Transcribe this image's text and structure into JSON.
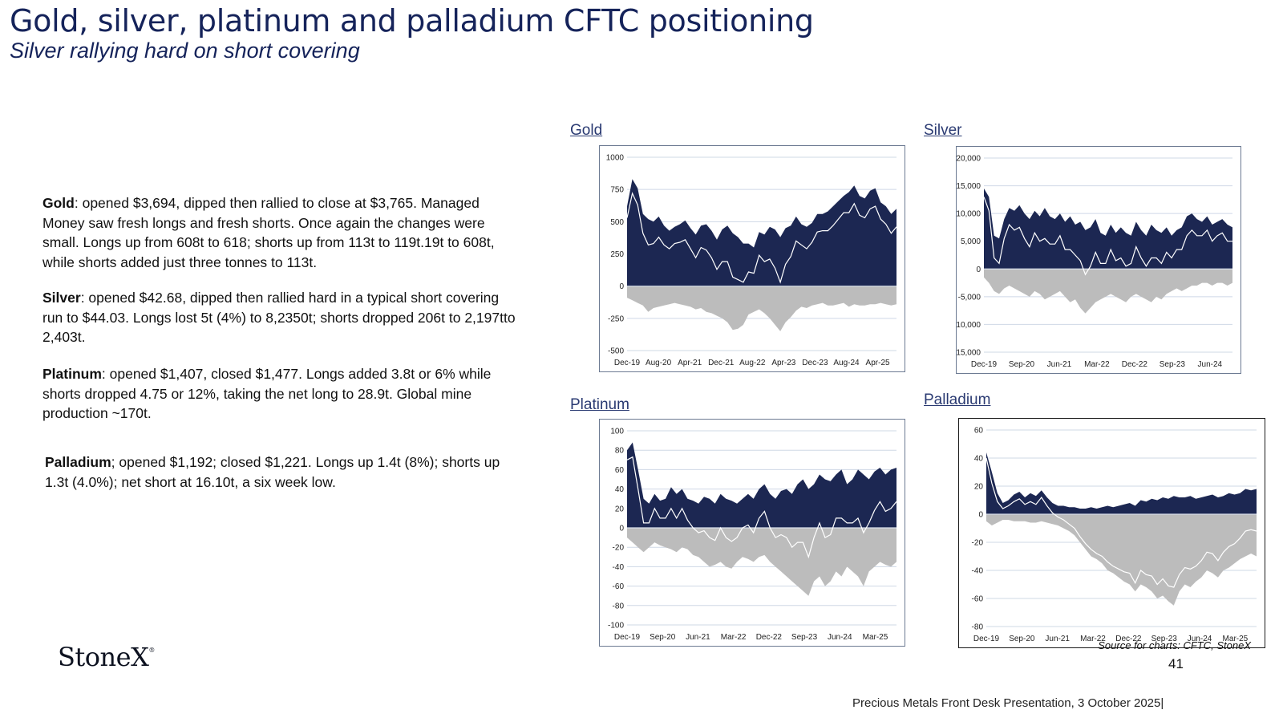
{
  "header": {
    "title": "Gold, silver, platinum and palladium CFTC positioning",
    "subtitle": "Silver rallying hard on short covering"
  },
  "commentary": [
    {
      "metal": "Gold",
      "text": ": opened $3,694, dipped then rallied to close at $3,765. Managed Money saw fresh longs and fresh shorts.  Once again the changes were small.  Longs up from 608t to 618; shorts up from 113t to 119t.19t to 608t, while shorts added just three tonnes to 113t."
    },
    {
      "metal": "Silver",
      "text": ": opened $42.68, dipped then rallied hard  in a typical short covering run to $44.03. Longs lost 5t (4%) to 8,2350t; shorts dropped 206t to 2,197tto 2,403t."
    },
    {
      "metal": "Platinum",
      "text": ": opened $1,407, closed $1,477. Longs added 3.8t or 6% while shorts dropped 4.75 or 12%, taking the net long to 28.9t.  Global mine production ~170t."
    },
    {
      "metal": "Palladium",
      "text": "; opened $1,192; closed $1,221.  Longs up 1.4t (8%); shorts up 1.3t (4.0%); net short at 16.10t, a six week low."
    }
  ],
  "colors": {
    "longs": "#1c2752",
    "shorts": "#bcbcbc",
    "net": "#ffffff",
    "grid": "#cfd8e6",
    "title": "#15235a"
  },
  "chart_data": [
    {
      "type": "area",
      "title": "Gold",
      "x_range": [
        "Dec-19",
        "Aug-25"
      ],
      "xticks": [
        "Dec-19",
        "Aug-20",
        "Apr-21",
        "Dec-21",
        "Aug-22",
        "Apr-23",
        "Dec-23",
        "Aug-24",
        "Apr-25"
      ],
      "yticks": [
        "1000",
        "750",
        "500",
        "250",
        "0",
        "-250",
        "-500"
      ],
      "ylim": [
        -500,
        1000
      ],
      "series": [
        {
          "role": "longs",
          "values": [
            620,
            830,
            760,
            560,
            520,
            500,
            540,
            470,
            430,
            460,
            480,
            510,
            450,
            400,
            470,
            480,
            430,
            360,
            440,
            470,
            410,
            380,
            330,
            330,
            300,
            420,
            400,
            460,
            440,
            380,
            450,
            470,
            540,
            480,
            460,
            490,
            560,
            560,
            580,
            620,
            660,
            700,
            730,
            780,
            700,
            680,
            740,
            760,
            650,
            620,
            560,
            600
          ]
        },
        {
          "role": "shorts",
          "values": [
            -90,
            -110,
            -130,
            -150,
            -200,
            -170,
            -160,
            -150,
            -140,
            -130,
            -140,
            -150,
            -160,
            -180,
            -170,
            -200,
            -210,
            -230,
            -250,
            -280,
            -340,
            -330,
            -300,
            -220,
            -200,
            -180,
            -210,
            -250,
            -300,
            -350,
            -280,
            -240,
            -190,
            -160,
            -170,
            -150,
            -140,
            -130,
            -150,
            -150,
            -140,
            -130,
            -160,
            -140,
            -150,
            -150,
            -140,
            -140,
            -130,
            -140,
            -150,
            -140
          ]
        },
        {
          "role": "net",
          "values": [
            530,
            720,
            630,
            410,
            320,
            330,
            380,
            320,
            290,
            330,
            340,
            360,
            290,
            220,
            300,
            280,
            220,
            130,
            190,
            190,
            70,
            50,
            30,
            110,
            100,
            240,
            190,
            210,
            140,
            30,
            170,
            230,
            350,
            320,
            290,
            340,
            420,
            430,
            430,
            470,
            520,
            570,
            570,
            640,
            550,
            530,
            600,
            620,
            520,
            480,
            410,
            460
          ]
        }
      ]
    },
    {
      "type": "area",
      "title": "Silver",
      "x_range": [
        "Dec-19",
        "Aug-25"
      ],
      "xticks": [
        "Dec-19",
        "Sep-20",
        "Jun-21",
        "Mar-22",
        "Dec-22",
        "Sep-23",
        "Jun-24"
      ],
      "yticks": [
        "20,000",
        "15,000",
        "10,000",
        "5,000",
        "0",
        "-5,000",
        "-10,000",
        "-15,000"
      ],
      "ylim": [
        -15000,
        20000
      ],
      "series": [
        {
          "role": "longs",
          "values": [
            14500,
            13000,
            6000,
            5500,
            9000,
            11000,
            10500,
            11500,
            10000,
            9000,
            10500,
            9500,
            11000,
            9500,
            9000,
            10000,
            8500,
            9500,
            8000,
            8500,
            7000,
            7500,
            9000,
            6500,
            6000,
            8000,
            6500,
            7500,
            6500,
            6000,
            8500,
            7000,
            6000,
            8000,
            7000,
            6500,
            7500,
            6000,
            7000,
            7500,
            9500,
            10000,
            9000,
            8500,
            9500,
            8000,
            8500,
            9000,
            8000,
            7500
          ]
        },
        {
          "role": "shorts",
          "values": [
            -1500,
            -2500,
            -4000,
            -4500,
            -3500,
            -3000,
            -3500,
            -4000,
            -4500,
            -5000,
            -4000,
            -4500,
            -5500,
            -5000,
            -4500,
            -4000,
            -5000,
            -6000,
            -5500,
            -7000,
            -8000,
            -7000,
            -6000,
            -5500,
            -5000,
            -4500,
            -5000,
            -5500,
            -6000,
            -5000,
            -4500,
            -5000,
            -5500,
            -6000,
            -5000,
            -5500,
            -4500,
            -4000,
            -3500,
            -4000,
            -3500,
            -3000,
            -3000,
            -2500,
            -2500,
            -3000,
            -2500,
            -2500,
            -3000,
            -2500
          ]
        },
        {
          "role": "net",
          "values": [
            13000,
            10500,
            2000,
            1000,
            5500,
            8000,
            7000,
            7500,
            5500,
            4000,
            6500,
            5000,
            5500,
            4500,
            4500,
            6000,
            3500,
            3500,
            2500,
            1500,
            -1000,
            500,
            3000,
            1000,
            1000,
            3500,
            1500,
            2000,
            500,
            1000,
            4000,
            2000,
            500,
            2000,
            2000,
            1000,
            3000,
            2000,
            3500,
            3500,
            6000,
            7000,
            6000,
            6000,
            7000,
            5000,
            6000,
            6500,
            5000,
            5000
          ]
        }
      ]
    },
    {
      "type": "area",
      "title": "Platinum",
      "x_range": [
        "Dec-19",
        "Aug-25"
      ],
      "xticks": [
        "Dec-19",
        "Sep-20",
        "Jun-21",
        "Mar-22",
        "Dec-22",
        "Sep-23",
        "Jun-24",
        "Mar-25"
      ],
      "yticks": [
        "100",
        "80",
        "60",
        "40",
        "20",
        "0",
        "-20",
        "-40",
        "-60",
        "-80",
        "-100"
      ],
      "ylim": [
        -100,
        100
      ],
      "series": [
        {
          "role": "longs",
          "values": [
            80,
            88,
            60,
            30,
            25,
            35,
            28,
            30,
            42,
            35,
            40,
            30,
            28,
            25,
            32,
            30,
            25,
            35,
            30,
            28,
            25,
            30,
            35,
            30,
            40,
            45,
            35,
            30,
            38,
            40,
            35,
            45,
            50,
            40,
            45,
            55,
            50,
            48,
            55,
            60,
            45,
            50,
            60,
            55,
            50,
            58,
            62,
            55,
            60,
            62
          ]
        },
        {
          "role": "shorts",
          "values": [
            -10,
            -15,
            -20,
            -25,
            -20,
            -15,
            -18,
            -20,
            -22,
            -25,
            -20,
            -22,
            -28,
            -30,
            -35,
            -40,
            -38,
            -35,
            -40,
            -42,
            -35,
            -30,
            -32,
            -35,
            -30,
            -28,
            -35,
            -40,
            -45,
            -50,
            -55,
            -60,
            -65,
            -70,
            -55,
            -50,
            -60,
            -55,
            -45,
            -50,
            -40,
            -45,
            -50,
            -60,
            -45,
            -40,
            -35,
            -38,
            -40,
            -35
          ]
        },
        {
          "role": "net",
          "values": [
            70,
            73,
            40,
            5,
            5,
            20,
            10,
            10,
            20,
            10,
            20,
            8,
            0,
            -5,
            -3,
            -10,
            -13,
            0,
            -10,
            -14,
            -10,
            0,
            3,
            -5,
            10,
            17,
            0,
            -10,
            -7,
            -10,
            -20,
            -15,
            -15,
            -30,
            -10,
            5,
            -10,
            -7,
            10,
            10,
            5,
            5,
            10,
            -5,
            5,
            18,
            27,
            17,
            20,
            27
          ]
        }
      ]
    },
    {
      "type": "area",
      "title": "Palladium",
      "x_range": [
        "Dec-19",
        "Aug-25"
      ],
      "xticks": [
        "Dec-19",
        "Sep-20",
        "Jun-21",
        "Mar-22",
        "Dec-22",
        "Sep-23",
        "Jun-24",
        "Mar-25"
      ],
      "yticks": [
        "60",
        "40",
        "20",
        "0",
        "-20",
        "-40",
        "-60",
        "-80"
      ],
      "ylim": [
        -80,
        60
      ],
      "series": [
        {
          "role": "longs",
          "values": [
            44,
            30,
            15,
            8,
            10,
            14,
            16,
            12,
            15,
            13,
            17,
            12,
            8,
            6,
            6,
            5,
            5,
            4,
            4,
            5,
            4,
            5,
            6,
            5,
            6,
            7,
            8,
            6,
            10,
            9,
            11,
            10,
            12,
            11,
            13,
            12,
            12,
            13,
            11,
            12,
            13,
            14,
            12,
            13,
            15,
            14,
            15,
            18,
            17,
            18
          ]
        },
        {
          "role": "shorts",
          "values": [
            -5,
            -8,
            -6,
            -4,
            -4,
            -5,
            -5,
            -5,
            -6,
            -6,
            -5,
            -6,
            -7,
            -8,
            -10,
            -12,
            -15,
            -20,
            -25,
            -30,
            -32,
            -35,
            -40,
            -42,
            -45,
            -48,
            -50,
            -55,
            -50,
            -52,
            -55,
            -60,
            -58,
            -62,
            -65,
            -55,
            -50,
            -52,
            -48,
            -45,
            -40,
            -42,
            -45,
            -40,
            -38,
            -35,
            -32,
            -30,
            -28,
            -30
          ]
        },
        {
          "role": "net",
          "values": [
            40,
            22,
            9,
            4,
            6,
            9,
            11,
            7,
            9,
            7,
            12,
            6,
            1,
            -2,
            -4,
            -7,
            -10,
            -16,
            -21,
            -25,
            -28,
            -30,
            -34,
            -37,
            -39,
            -41,
            -42,
            -49,
            -40,
            -43,
            -44,
            -50,
            -46,
            -51,
            -52,
            -43,
            -38,
            -39,
            -37,
            -33,
            -27,
            -28,
            -33,
            -27,
            -23,
            -21,
            -17,
            -12,
            -11,
            -12
          ]
        }
      ]
    }
  ],
  "source": "Source for charts: CFTC, StoneX",
  "logo": {
    "text": "StoneX",
    "mark": "®"
  },
  "page_number": "41",
  "footer": "Precious Metals Front Desk Presentation, 3 October 2025|"
}
